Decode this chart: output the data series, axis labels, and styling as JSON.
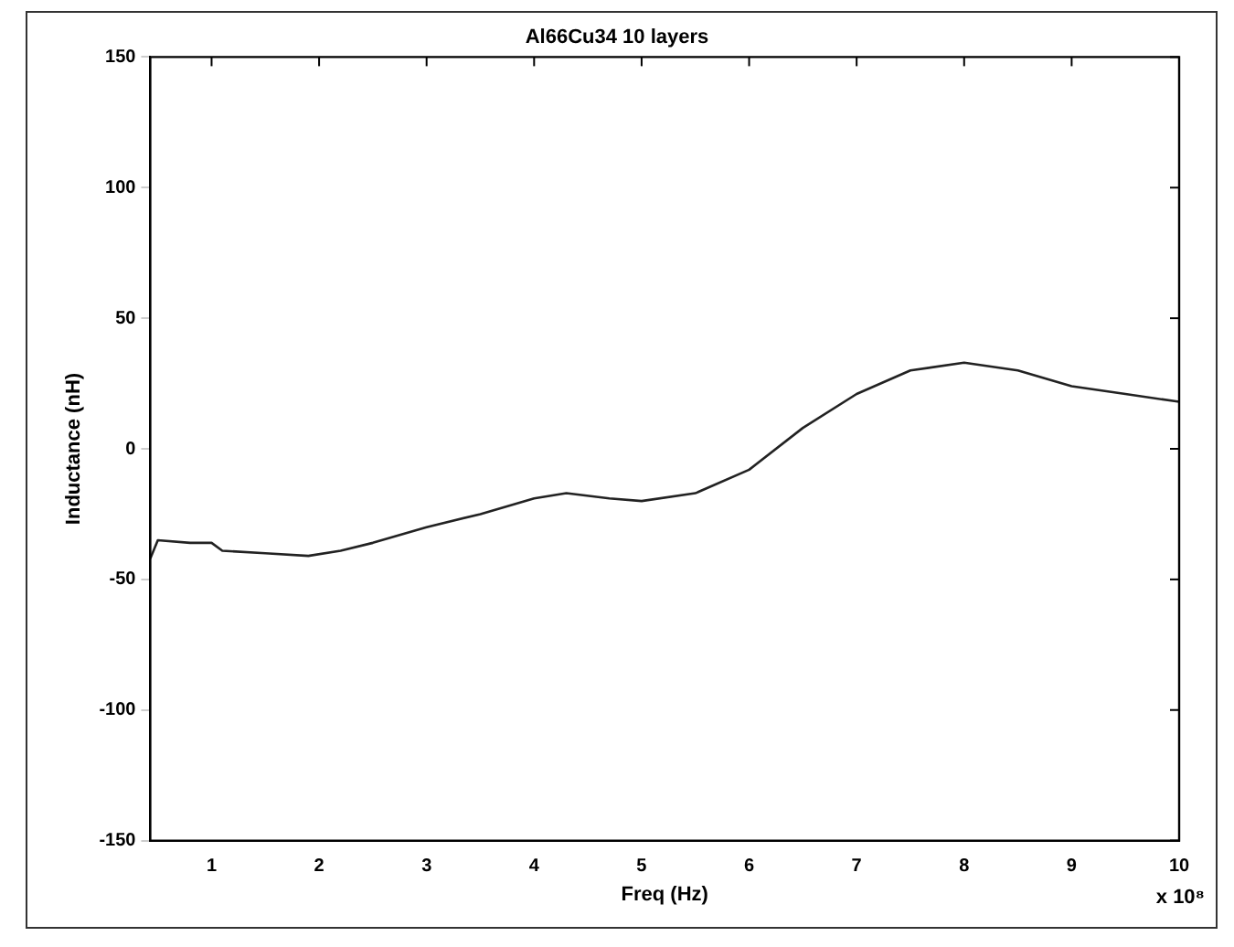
{
  "chart_data": {
    "type": "line",
    "title": "Al66Cu34 10 layers",
    "xlabel": "Freq (Hz)",
    "ylabel": "Inductance (nH)",
    "annotations": [
      "x 10⁸"
    ],
    "x": [
      0.43,
      0.5,
      0.8,
      1.0,
      1.1,
      1.5,
      1.9,
      2.2,
      2.5,
      3.0,
      3.5,
      4.0,
      4.3,
      4.7,
      5.0,
      5.5,
      6.0,
      6.5,
      7.0,
      7.5,
      8.0,
      8.5,
      9.0,
      9.5,
      10.0
    ],
    "series": [
      {
        "color": "#222222",
        "values": [
          -42,
          -35,
          -36,
          -36,
          -39,
          -40,
          -41,
          -39,
          -36,
          -30,
          -25,
          -19,
          -17,
          -19,
          -20,
          -17,
          -8,
          8,
          21,
          30,
          33,
          30,
          24,
          21,
          18
        ]
      }
    ],
    "xlim": [
      0.43,
      10
    ],
    "xticks": [
      1,
      2,
      3,
      4,
      5,
      6,
      7,
      8,
      9,
      10
    ],
    "ylim": [
      -150,
      150
    ],
    "yticks": [
      -150,
      -100,
      -50,
      0,
      50,
      100,
      150
    ],
    "grid": false,
    "legend": false,
    "marker": "none",
    "line_style": "solid"
  }
}
